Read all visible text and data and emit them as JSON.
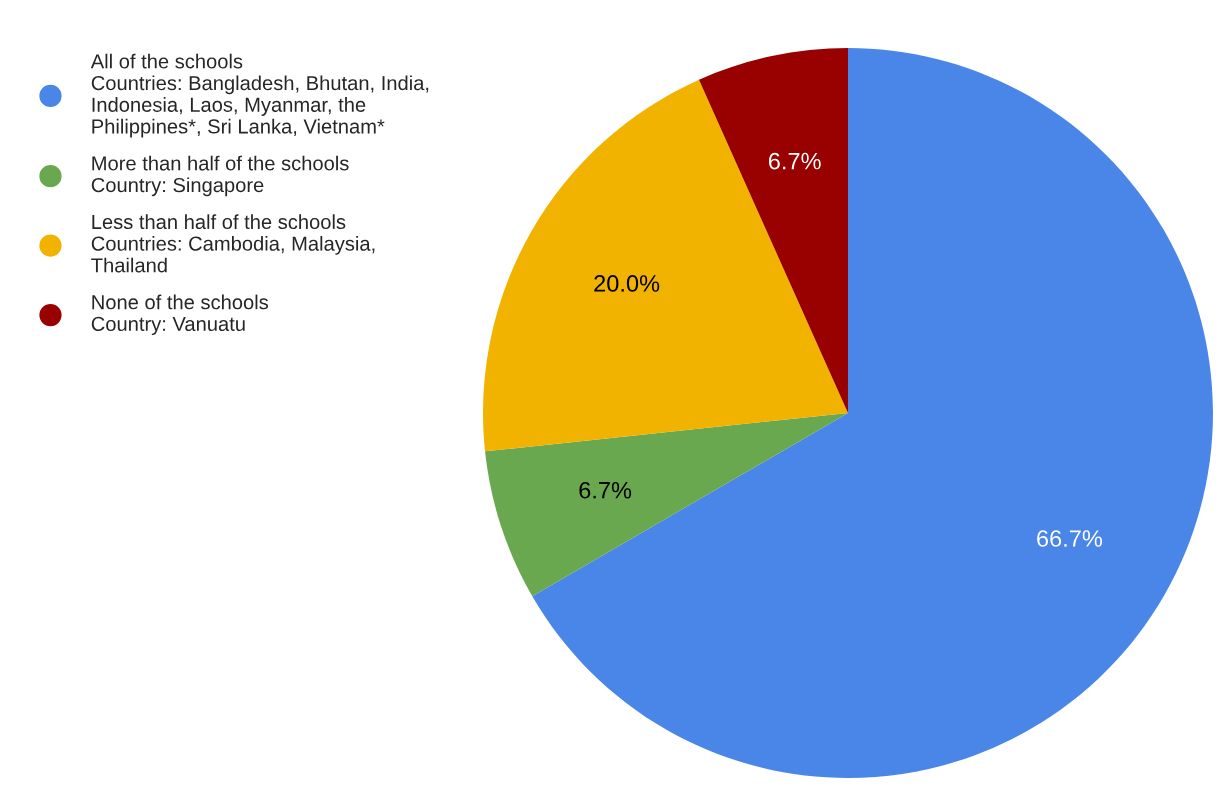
{
  "chart_data": {
    "type": "pie",
    "categories": [
      "All of the schools\nCountries: Bangladesh, Bhutan, India,\nIndonesia, Laos, Myanmar, the\nPhilippines*, Sri Lanka, Vietnam*",
      "More than half of the schools\nCountry: Singapore",
      "Less than half of the schools\nCountries: Cambodia, Malaysia,\nThailand",
      "None of the schools\nCountry: Vanuatu"
    ],
    "values": [
      66.7,
      6.7,
      20.0,
      6.7
    ],
    "value_labels": [
      "66.7%",
      "6.7%",
      "20.0%",
      "6.7%"
    ],
    "colors": [
      "#4a86e8",
      "#6aa84f",
      "#f1b300",
      "#990000"
    ],
    "legend": "top left"
  }
}
